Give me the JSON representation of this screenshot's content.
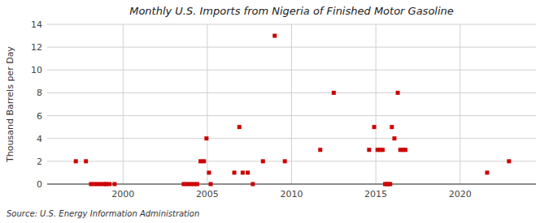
{
  "chart_data": {
    "type": "scatter",
    "title": "Monthly U.S. Imports from Nigeria of Finished Motor Gasoline",
    "ylabel": "Thousand Barrels per Day",
    "annotation": "Source: U.S. Energy Information Administration",
    "color": "#cc0000",
    "marker": "square",
    "grid": true,
    "xlim": [
      1995.5,
      2024.5
    ],
    "xticks": [
      2000,
      2005,
      2010,
      2015,
      2020
    ],
    "ylim": [
      0,
      14
    ],
    "yticks": [
      0,
      2,
      4,
      6,
      8,
      10,
      12,
      14
    ],
    "x": [
      1997.2,
      1997.8,
      1998.1,
      1998.3,
      1998.5,
      1998.7,
      1998.9,
      1999.0,
      1999.2,
      1999.5,
      2003.6,
      2003.8,
      2004.0,
      2004.2,
      2004.4,
      2004.6,
      2004.8,
      2004.95,
      2005.1,
      2005.2,
      2006.6,
      2006.9,
      2007.1,
      2007.4,
      2007.7,
      2008.3,
      2009.0,
      2009.6,
      2011.7,
      2012.5,
      2014.6,
      2014.9,
      2015.1,
      2015.25,
      2015.4,
      2015.55,
      2015.65,
      2015.75,
      2015.85,
      2015.95,
      2016.1,
      2016.3,
      2016.45,
      2016.6,
      2016.75,
      2021.6,
      2022.9
    ],
    "values": [
      2,
      2,
      0,
      0,
      0,
      0,
      0,
      0,
      0,
      0,
      0,
      0,
      0,
      0,
      0,
      2,
      2,
      4,
      1,
      0,
      1,
      5,
      1,
      1,
      0,
      2,
      13,
      2,
      3,
      8,
      3,
      5,
      3,
      3,
      3,
      0,
      0,
      0,
      0,
      5,
      4,
      8,
      3,
      3,
      3,
      1,
      2
    ]
  }
}
